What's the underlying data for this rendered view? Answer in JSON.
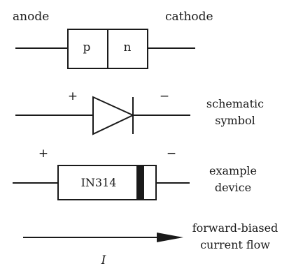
{
  "top": {
    "anode_label": "anode",
    "cathode_label": "cathode",
    "p_label": "p",
    "n_label": "n"
  },
  "schematic": {
    "plus": "+",
    "minus": "−",
    "caption_line1": "schematic",
    "caption_line2": "symbol"
  },
  "device": {
    "plus": "+",
    "minus": "−",
    "part_number": "IN314",
    "caption_line1": "example",
    "caption_line2": "device"
  },
  "flow": {
    "current_symbol": "I",
    "caption_line1": "forward-biased",
    "caption_line2": "current flow"
  },
  "colors": {
    "ink": "#1a1a1a",
    "background": "#ffffff"
  }
}
